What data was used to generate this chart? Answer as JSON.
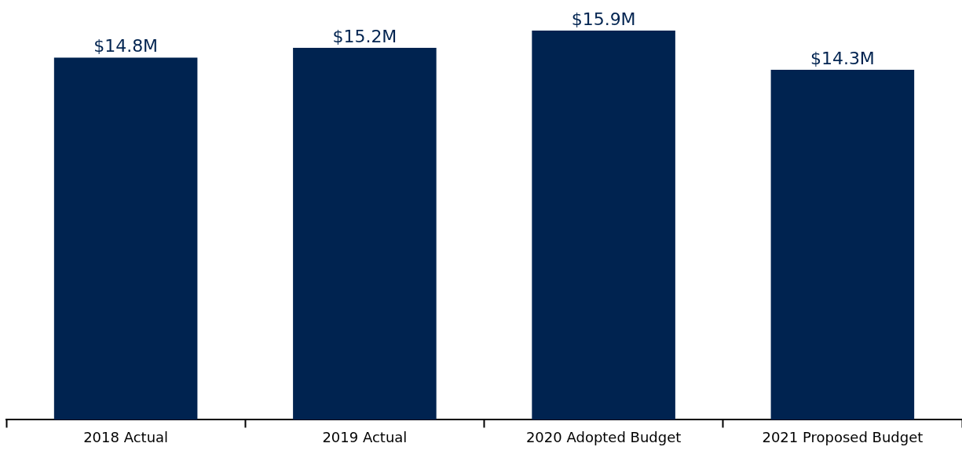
{
  "chart_data": {
    "type": "bar",
    "categories": [
      "2018 Actual",
      "2019 Actual",
      "2020 Adopted Budget",
      "2021 Proposed Budget"
    ],
    "values": [
      14.8,
      15.2,
      15.9,
      14.3
    ],
    "value_labels": [
      "$14.8M",
      "$15.2M",
      "$15.9M",
      "$14.3M"
    ],
    "color": "#002350",
    "grid": false,
    "legend": false
  }
}
